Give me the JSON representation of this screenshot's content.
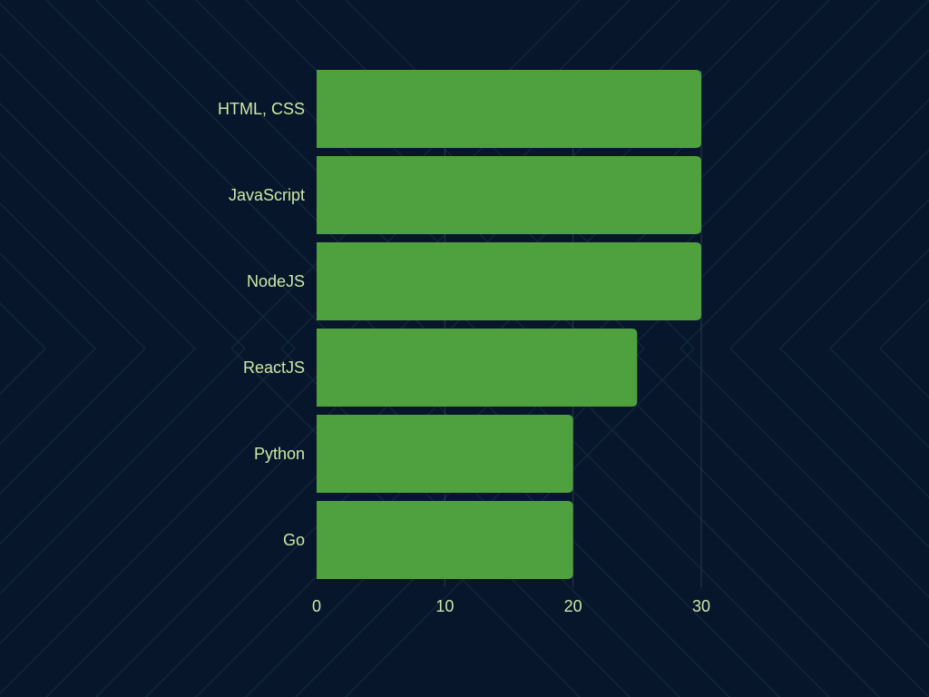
{
  "colors": {
    "background": "#07162a",
    "pattern": "#13273c",
    "bar": "#4fa03f",
    "label": "#cfe8a8",
    "grid": "#2a3a4c"
  },
  "chart_data": {
    "type": "bar",
    "orientation": "horizontal",
    "categories": [
      "HTML, CSS",
      "JavaScript",
      "NodeJS",
      "ReactJS",
      "Python",
      "Go"
    ],
    "values": [
      30,
      30,
      30,
      25,
      20,
      20
    ],
    "xticks": [
      "0",
      "10",
      "20",
      "30"
    ],
    "xlim": [
      0,
      30
    ],
    "grid": "vertical"
  }
}
